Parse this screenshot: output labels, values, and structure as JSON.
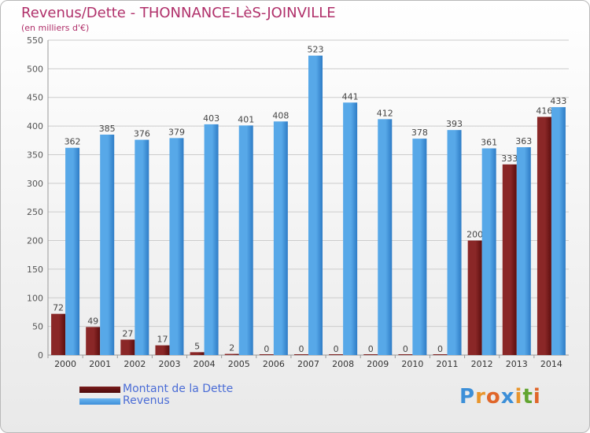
{
  "chart_data": {
    "type": "bar",
    "title": "Revenus/Dette - THONNANCE-LèS-JOINVILLE",
    "subtitle": "(en milliers d'€)",
    "categories": [
      "2000",
      "2001",
      "2002",
      "2003",
      "2004",
      "2005",
      "2006",
      "2007",
      "2008",
      "2009",
      "2010",
      "2011",
      "2012",
      "2013",
      "2014"
    ],
    "series": [
      {
        "name": "Montant de la Dette",
        "color": "#7a1c1c",
        "values": [
          72,
          49,
          27,
          17,
          5,
          2,
          0,
          0,
          0,
          0,
          0,
          0,
          200,
          333,
          416
        ]
      },
      {
        "name": "Revenus",
        "color": "#3d8fd9",
        "values": [
          362,
          385,
          376,
          379,
          403,
          401,
          408,
          523,
          441,
          412,
          378,
          393,
          361,
          363,
          433
        ]
      }
    ],
    "ylim": [
      0,
      550
    ],
    "yticks": [
      0,
      50,
      100,
      150,
      200,
      250,
      300,
      350,
      400,
      450,
      500,
      550
    ],
    "grid": true,
    "legend_position": "bottom-left"
  },
  "logo": {
    "text": "Proxiti",
    "letter_colors": [
      "#3c8fd8",
      "#e8952c",
      "#e0662a",
      "#3c8fd8",
      "#e8952c",
      "#62a531",
      "#e0662a"
    ]
  }
}
